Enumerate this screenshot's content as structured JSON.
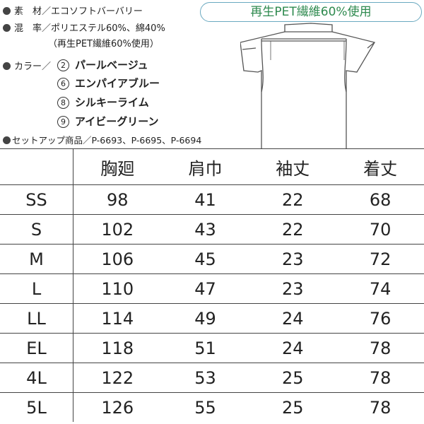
{
  "specs": {
    "material": {
      "label": "素　材／",
      "value": "エコソフトバーバリー"
    },
    "blend": {
      "label": "混　率／",
      "value": "ポリエステル60%、綿40%",
      "note": "（再生PET繊維60%使用）"
    },
    "colors": {
      "label": "カラー／",
      "items": [
        {
          "num": "2",
          "name": "パールベージュ"
        },
        {
          "num": "6",
          "name": "エンパイアブルー"
        },
        {
          "num": "8",
          "name": "シルキーライム"
        },
        {
          "num": "9",
          "name": "アイビーグリーン"
        }
      ]
    },
    "setup": {
      "label": "セットアップ商品／",
      "value": "P-6693、P-6695、P-6694"
    }
  },
  "badge": "再生PET繊維60%使用",
  "badge_color": "#2f8a4f",
  "table": {
    "headers": [
      "",
      "胸廻",
      "肩巾",
      "袖丈",
      "着丈"
    ],
    "rows": [
      [
        "SS",
        "98",
        "41",
        "22",
        "68"
      ],
      [
        "S",
        "102",
        "43",
        "22",
        "70"
      ],
      [
        "M",
        "106",
        "45",
        "23",
        "72"
      ],
      [
        "L",
        "110",
        "47",
        "23",
        "74"
      ],
      [
        "LL",
        "114",
        "49",
        "24",
        "76"
      ],
      [
        "EL",
        "118",
        "51",
        "24",
        "78"
      ],
      [
        "4L",
        "122",
        "53",
        "25",
        "78"
      ],
      [
        "5L",
        "126",
        "55",
        "25",
        "78"
      ]
    ]
  }
}
